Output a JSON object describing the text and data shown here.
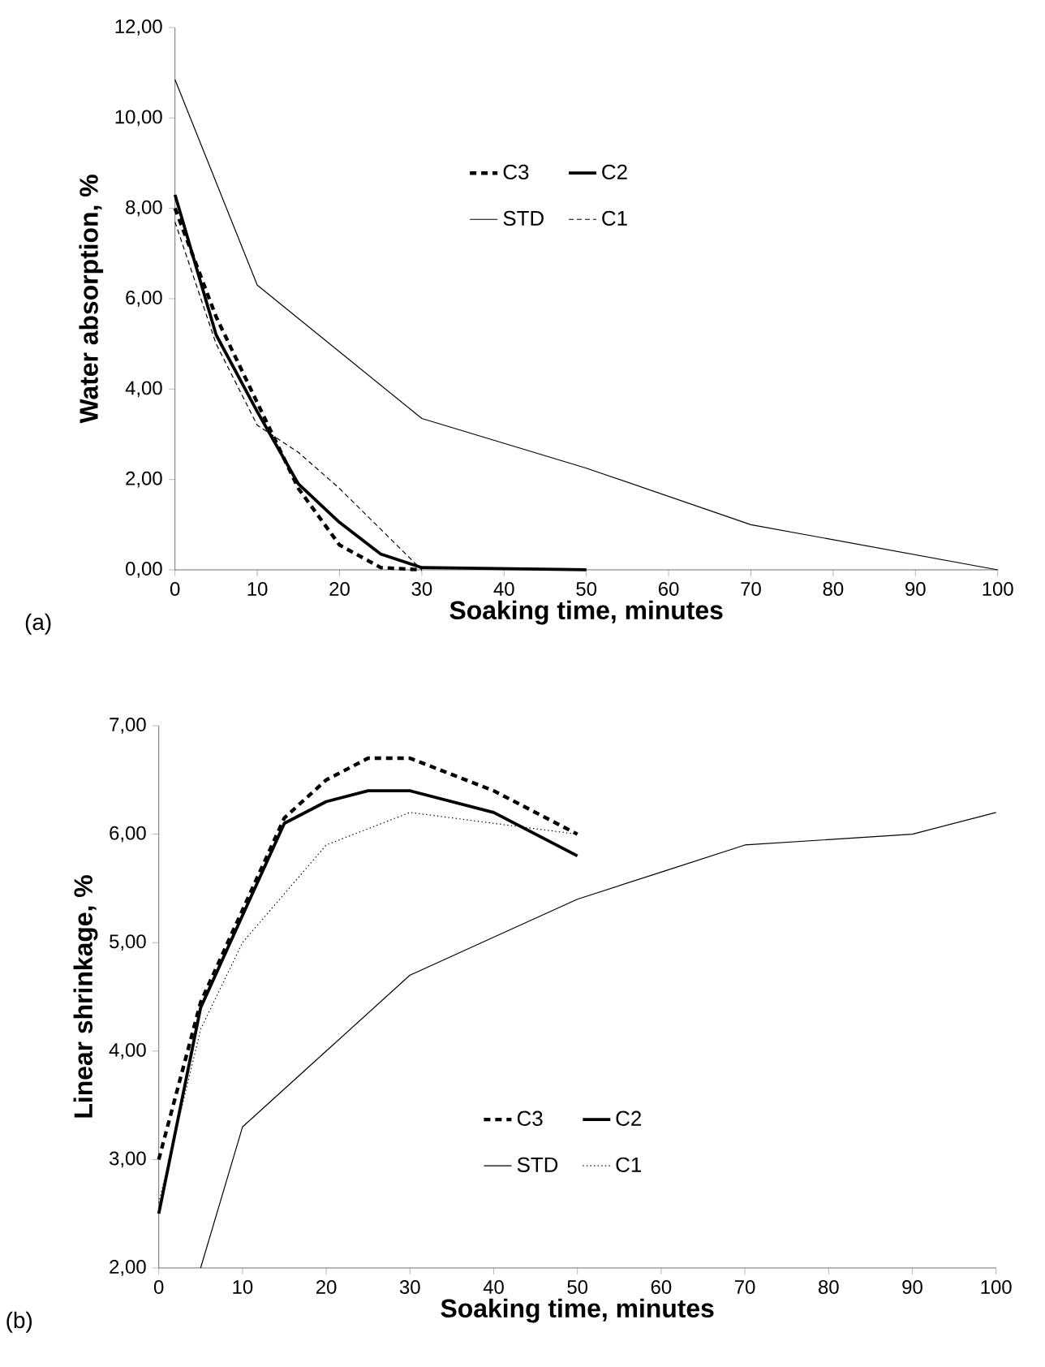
{
  "chart_data": [
    {
      "type": "line",
      "xlabel": "Soaking time, minutes",
      "ylabel": "Water absorption, %",
      "annotations": [
        "(a)"
      ],
      "legend": "top",
      "grid": false,
      "xlim": [
        0,
        100
      ],
      "xticks": [
        0,
        10,
        20,
        30,
        40,
        50,
        60,
        70,
        80,
        90,
        100
      ],
      "ylim": [
        0,
        12
      ],
      "yticks": [
        {
          "value": 0,
          "label": "0,00"
        },
        {
          "value": 2,
          "label": "2,00"
        },
        {
          "value": 4,
          "label": "4,00"
        },
        {
          "value": 6,
          "label": "6,00"
        },
        {
          "value": 8,
          "label": "8,00"
        },
        {
          "value": 10,
          "label": "10,00"
        },
        {
          "value": 12,
          "label": "12,00"
        }
      ],
      "series": [
        {
          "name": "C3",
          "color": "#000000",
          "line_style": "dashed",
          "x": [
            0,
            5,
            10,
            15,
            20,
            25,
            30
          ],
          "values": [
            8.0,
            5.6,
            3.7,
            1.8,
            0.55,
            0.05,
            0.0
          ]
        },
        {
          "name": "C2",
          "color": "#000000",
          "line_style": "solid",
          "x": [
            0,
            5,
            10,
            15,
            20,
            25,
            30,
            50
          ],
          "values": [
            8.3,
            5.2,
            3.5,
            1.9,
            1.05,
            0.35,
            0.05,
            0.0
          ]
        },
        {
          "name": "STD",
          "color": "#000000",
          "line_style": "solid",
          "x": [
            0,
            10,
            30,
            50,
            70,
            100
          ],
          "values": [
            10.85,
            6.3,
            3.35,
            2.25,
            1.0,
            0.0
          ]
        },
        {
          "name": "C1",
          "color": "#000000",
          "line_style": "dashed",
          "x": [
            0,
            5,
            10,
            15,
            20,
            25,
            30
          ],
          "values": [
            7.7,
            5.0,
            3.2,
            2.6,
            1.8,
            0.9,
            0.0
          ]
        }
      ]
    },
    {
      "type": "line",
      "xlabel": "Soaking time, minutes",
      "ylabel": "Linear shrinkage, %",
      "annotations": [
        "(b)"
      ],
      "legend": "bottom",
      "grid": false,
      "xlim": [
        0,
        100
      ],
      "xticks": [
        0,
        10,
        20,
        30,
        40,
        50,
        60,
        70,
        80,
        90,
        100
      ],
      "ylim": [
        2,
        7
      ],
      "yticks": [
        {
          "value": 2,
          "label": "2,00"
        },
        {
          "value": 3,
          "label": "3,00"
        },
        {
          "value": 4,
          "label": "4,00"
        },
        {
          "value": 5,
          "label": "5,00"
        },
        {
          "value": 6,
          "label": "6,00"
        },
        {
          "value": 7,
          "label": "7,00"
        }
      ],
      "series": [
        {
          "name": "C3",
          "color": "#000000",
          "line_style": "dashed",
          "x": [
            0,
            5,
            10,
            15,
            20,
            25,
            30,
            40,
            50
          ],
          "values": [
            3.0,
            4.45,
            5.3,
            6.15,
            6.5,
            6.7,
            6.7,
            6.4,
            6.0
          ]
        },
        {
          "name": "C2",
          "color": "#000000",
          "line_style": "solid",
          "x": [
            0,
            5,
            10,
            15,
            20,
            25,
            30,
            40,
            50
          ],
          "values": [
            2.5,
            4.4,
            5.25,
            6.1,
            6.3,
            6.4,
            6.4,
            6.2,
            5.8
          ]
        },
        {
          "name": "STD",
          "color": "#000000",
          "line_style": "solid",
          "x": [
            5,
            10,
            20,
            30,
            40,
            50,
            60,
            70,
            90,
            100
          ],
          "values": [
            2.0,
            3.3,
            4.0,
            4.7,
            5.05,
            5.4,
            5.65,
            5.9,
            6.0,
            6.2
          ]
        },
        {
          "name": "C1",
          "color": "#000000",
          "line_style": "dotted",
          "x": [
            0,
            5,
            10,
            15,
            20,
            25,
            30,
            40,
            50
          ],
          "values": [
            2.6,
            4.2,
            5.0,
            5.45,
            5.9,
            6.05,
            6.2,
            6.1,
            6.0
          ]
        }
      ]
    }
  ]
}
